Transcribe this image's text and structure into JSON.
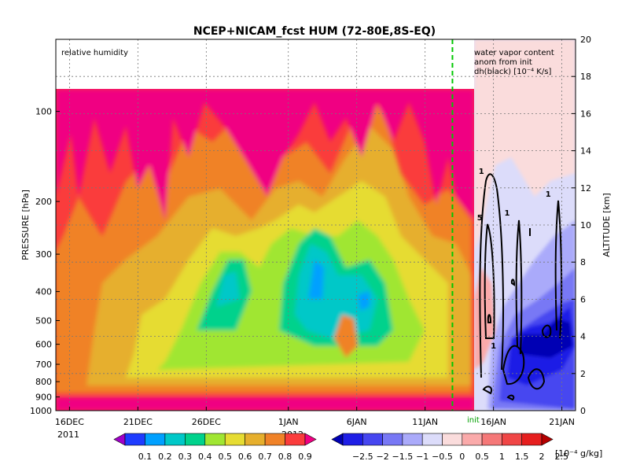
{
  "chart_data": {
    "type": "heatmap",
    "title": "NCEP+NICAM_fcst HUM (72-80E,8S-EQ)",
    "left_annotation": "relative humidity",
    "right_annotation": [
      "water vapor content",
      "anom from init",
      "dh(black) [10⁻⁴ K/s]"
    ],
    "init_label": "init",
    "ylabel_left": "PRESSURE [hPa]",
    "ylabel_right": "ALTITUDE [km]",
    "pressure_ticks": [
      "100",
      "200",
      "300",
      "400",
      "500",
      "600",
      "700",
      "800",
      "900",
      "1000"
    ],
    "altitude_ticks": [
      "0",
      "2",
      "4",
      "6",
      "8",
      "10",
      "12",
      "14",
      "16",
      "18",
      "20"
    ],
    "x_ticks": [
      "16DEC",
      "21DEC",
      "26DEC",
      "1JAN",
      "6JAN",
      "11JAN",
      "16JAN",
      "21JAN"
    ],
    "x_year_labels": [
      "2011",
      "2012"
    ],
    "x_range": [
      "2011-12-15",
      "2012-01-22"
    ],
    "init_date": "2012-01-13",
    "pressure_range": [
      100,
      1000
    ],
    "altitude_range": [
      0,
      20
    ],
    "grid": true,
    "colorbar_rh": {
      "labels": [
        "0.1",
        "0.2",
        "0.3",
        "0.4",
        "0.5",
        "0.6",
        "0.7",
        "0.8",
        "0.9"
      ],
      "colors": [
        "#a000c8",
        "#1e3cff",
        "#00a0ff",
        "#00c8c8",
        "#00d28c",
        "#a0e632",
        "#e6dc32",
        "#e6af2d",
        "#f08228",
        "#fa3c3c",
        "#f00082"
      ]
    },
    "colorbar_anom": {
      "labels": [
        "−2.5",
        "−2",
        "−1.5",
        "−1",
        "−0.5",
        "0",
        "0.5",
        "1",
        "1.5",
        "2",
        "2.5"
      ],
      "unit": "[10⁻⁴ g/kg]",
      "colors": [
        "#0000b4",
        "#1e1ee6",
        "#4646f0",
        "#7878f5",
        "#aaaafa",
        "#dcdcfa",
        "#fadcdc",
        "#faaaaa",
        "#f57878",
        "#f04646",
        "#e61e1e",
        "#b40000"
      ]
    },
    "contour_labels": [
      "1",
      "5",
      "1",
      "1",
      "1"
    ]
  }
}
